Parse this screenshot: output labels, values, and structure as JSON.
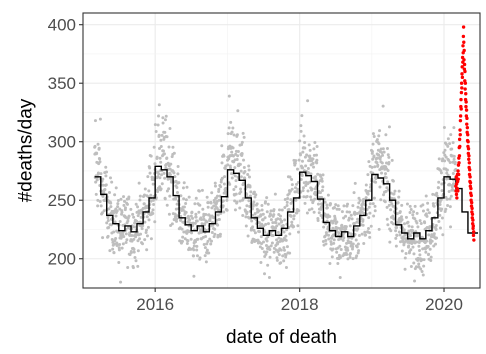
{
  "chart_data": {
    "type": "scatter",
    "xlabel": "date of death",
    "ylabel": "#deaths/day",
    "xlim": [
      "2015-01-01",
      "2020-07-01"
    ],
    "ylim": [
      175,
      410
    ],
    "x_ticks": [
      {
        "date": "2016-01-01",
        "label": "2016"
      },
      {
        "date": "2018-01-01",
        "label": "2018"
      },
      {
        "date": "2020-01-01",
        "label": "2020"
      }
    ],
    "y_ticks": [
      {
        "value": 200,
        "label": "200"
      },
      {
        "value": 250,
        "label": "250"
      },
      {
        "value": 300,
        "label": "300"
      },
      {
        "value": 350,
        "label": "350"
      },
      {
        "value": 400,
        "label": "400"
      }
    ],
    "grid": true,
    "colors": {
      "observed": "#bebebe",
      "highlight": "#ff0000",
      "baseline": "#000000"
    },
    "highlight_period": {
      "start": "2020-03-01",
      "end": "2020-05-31"
    },
    "baseline_series": {
      "style": "step",
      "values": [
        {
          "start": "2015-03-01",
          "value": 270
        },
        {
          "start": "2015-04-01",
          "value": 255
        },
        {
          "start": "2015-05-01",
          "value": 237
        },
        {
          "start": "2015-06-01",
          "value": 230
        },
        {
          "start": "2015-07-01",
          "value": 224
        },
        {
          "start": "2015-08-01",
          "value": 228
        },
        {
          "start": "2015-09-01",
          "value": 223
        },
        {
          "start": "2015-10-01",
          "value": 230
        },
        {
          "start": "2015-11-01",
          "value": 240
        },
        {
          "start": "2015-12-01",
          "value": 252
        },
        {
          "start": "2016-01-01",
          "value": 279
        },
        {
          "start": "2016-02-01",
          "value": 276
        },
        {
          "start": "2016-03-01",
          "value": 270
        },
        {
          "start": "2016-04-01",
          "value": 254
        },
        {
          "start": "2016-05-01",
          "value": 235
        },
        {
          "start": "2016-06-01",
          "value": 229
        },
        {
          "start": "2016-07-01",
          "value": 224
        },
        {
          "start": "2016-08-01",
          "value": 228
        },
        {
          "start": "2016-09-01",
          "value": 223
        },
        {
          "start": "2016-10-01",
          "value": 230
        },
        {
          "start": "2016-11-01",
          "value": 240
        },
        {
          "start": "2016-12-01",
          "value": 253
        },
        {
          "start": "2017-01-01",
          "value": 276
        },
        {
          "start": "2017-02-01",
          "value": 273
        },
        {
          "start": "2017-03-01",
          "value": 267
        },
        {
          "start": "2017-04-01",
          "value": 252
        },
        {
          "start": "2017-05-01",
          "value": 235
        },
        {
          "start": "2017-06-01",
          "value": 226
        },
        {
          "start": "2017-07-01",
          "value": 220
        },
        {
          "start": "2017-08-01",
          "value": 224
        },
        {
          "start": "2017-09-01",
          "value": 220
        },
        {
          "start": "2017-10-01",
          "value": 226
        },
        {
          "start": "2017-11-01",
          "value": 240
        },
        {
          "start": "2017-12-01",
          "value": 252
        },
        {
          "start": "2018-01-01",
          "value": 274
        },
        {
          "start": "2018-02-01",
          "value": 271
        },
        {
          "start": "2018-03-01",
          "value": 266
        },
        {
          "start": "2018-04-01",
          "value": 251
        },
        {
          "start": "2018-05-01",
          "value": 231
        },
        {
          "start": "2018-06-01",
          "value": 224
        },
        {
          "start": "2018-07-01",
          "value": 219
        },
        {
          "start": "2018-08-01",
          "value": 223
        },
        {
          "start": "2018-09-01",
          "value": 219
        },
        {
          "start": "2018-10-01",
          "value": 228
        },
        {
          "start": "2018-11-01",
          "value": 237
        },
        {
          "start": "2018-12-01",
          "value": 250
        },
        {
          "start": "2019-01-01",
          "value": 272
        },
        {
          "start": "2019-02-01",
          "value": 269
        },
        {
          "start": "2019-03-01",
          "value": 264
        },
        {
          "start": "2019-04-01",
          "value": 250
        },
        {
          "start": "2019-05-01",
          "value": 229
        },
        {
          "start": "2019-06-01",
          "value": 222
        },
        {
          "start": "2019-07-01",
          "value": 217
        },
        {
          "start": "2019-08-01",
          "value": 222
        },
        {
          "start": "2019-09-01",
          "value": 217
        },
        {
          "start": "2019-10-01",
          "value": 224
        },
        {
          "start": "2019-11-01",
          "value": 235
        },
        {
          "start": "2019-12-01",
          "value": 252
        },
        {
          "start": "2020-01-01",
          "value": 270
        },
        {
          "start": "2020-02-01",
          "value": 268
        },
        {
          "start": "2020-03-01",
          "value": 260
        },
        {
          "start": "2020-04-01",
          "value": 240
        },
        {
          "start": "2020-05-01",
          "value": 222
        },
        {
          "start": "2020-06-01",
          "value": 222
        }
      ]
    },
    "scatter_model": {
      "start": "2015-03-01",
      "end": "2020-02-29",
      "spread": 14,
      "winter_spikes": [
        {
          "date": "2015-03-05",
          "value": 318
        },
        {
          "date": "2016-02-10",
          "value": 316
        },
        {
          "date": "2017-01-10",
          "value": 339
        },
        {
          "date": "2018-02-10",
          "value": 335
        },
        {
          "date": "2019-02-05",
          "value": 305
        },
        {
          "date": "2020-01-20",
          "value": 296
        }
      ],
      "low_points": [
        {
          "date": "2015-07-10",
          "value": 180
        },
        {
          "date": "2016-07-15",
          "value": 185
        },
        {
          "date": "2017-08-01",
          "value": 184
        },
        {
          "date": "2018-07-25",
          "value": 184
        },
        {
          "date": "2019-08-05",
          "value": 181
        }
      ]
    },
    "highlight_points": [
      {
        "x": "2020-03-01",
        "y": 262
      },
      {
        "x": "2020-03-02",
        "y": 258
      },
      {
        "x": "2020-03-03",
        "y": 270
      },
      {
        "x": "2020-03-04",
        "y": 255
      },
      {
        "x": "2020-03-05",
        "y": 264
      },
      {
        "x": "2020-03-06",
        "y": 252
      },
      {
        "x": "2020-03-07",
        "y": 268
      },
      {
        "x": "2020-03-08",
        "y": 260
      },
      {
        "x": "2020-03-09",
        "y": 272
      },
      {
        "x": "2020-03-10",
        "y": 266
      },
      {
        "x": "2020-03-11",
        "y": 258
      },
      {
        "x": "2020-03-12",
        "y": 275
      },
      {
        "x": "2020-03-13",
        "y": 268
      },
      {
        "x": "2020-03-14",
        "y": 280
      },
      {
        "x": "2020-03-15",
        "y": 272
      },
      {
        "x": "2020-03-16",
        "y": 286
      },
      {
        "x": "2020-03-17",
        "y": 282
      },
      {
        "x": "2020-03-18",
        "y": 295
      },
      {
        "x": "2020-03-19",
        "y": 288
      },
      {
        "x": "2020-03-20",
        "y": 302
      },
      {
        "x": "2020-03-21",
        "y": 296
      },
      {
        "x": "2020-03-22",
        "y": 310
      },
      {
        "x": "2020-03-23",
        "y": 306
      },
      {
        "x": "2020-03-24",
        "y": 318
      },
      {
        "x": "2020-03-25",
        "y": 322
      },
      {
        "x": "2020-03-26",
        "y": 330
      },
      {
        "x": "2020-03-27",
        "y": 336
      },
      {
        "x": "2020-03-28",
        "y": 328
      },
      {
        "x": "2020-03-29",
        "y": 342
      },
      {
        "x": "2020-03-30",
        "y": 350
      },
      {
        "x": "2020-03-31",
        "y": 346
      },
      {
        "x": "2020-04-01",
        "y": 358
      },
      {
        "x": "2020-04-02",
        "y": 364
      },
      {
        "x": "2020-04-03",
        "y": 355
      },
      {
        "x": "2020-04-04",
        "y": 372
      },
      {
        "x": "2020-04-05",
        "y": 368
      },
      {
        "x": "2020-04-06",
        "y": 382
      },
      {
        "x": "2020-04-07",
        "y": 376
      },
      {
        "x": "2020-04-08",
        "y": 390
      },
      {
        "x": "2020-04-09",
        "y": 398
      },
      {
        "x": "2020-04-10",
        "y": 385
      },
      {
        "x": "2020-04-11",
        "y": 370
      },
      {
        "x": "2020-04-12",
        "y": 378
      },
      {
        "x": "2020-04-13",
        "y": 362
      },
      {
        "x": "2020-04-14",
        "y": 366
      },
      {
        "x": "2020-04-15",
        "y": 352
      },
      {
        "x": "2020-04-16",
        "y": 360
      },
      {
        "x": "2020-04-17",
        "y": 345
      },
      {
        "x": "2020-04-18",
        "y": 350
      },
      {
        "x": "2020-04-19",
        "y": 336
      },
      {
        "x": "2020-04-20",
        "y": 341
      },
      {
        "x": "2020-04-21",
        "y": 330
      },
      {
        "x": "2020-04-22",
        "y": 334
      },
      {
        "x": "2020-04-23",
        "y": 322
      },
      {
        "x": "2020-04-24",
        "y": 327
      },
      {
        "x": "2020-04-25",
        "y": 315
      },
      {
        "x": "2020-04-26",
        "y": 320
      },
      {
        "x": "2020-04-27",
        "y": 308
      },
      {
        "x": "2020-04-28",
        "y": 312
      },
      {
        "x": "2020-04-29",
        "y": 301
      },
      {
        "x": "2020-04-30",
        "y": 306
      },
      {
        "x": "2020-05-01",
        "y": 296
      },
      {
        "x": "2020-05-02",
        "y": 300
      },
      {
        "x": "2020-05-03",
        "y": 290
      },
      {
        "x": "2020-05-04",
        "y": 294
      },
      {
        "x": "2020-05-05",
        "y": 285
      },
      {
        "x": "2020-05-06",
        "y": 288
      },
      {
        "x": "2020-05-07",
        "y": 278
      },
      {
        "x": "2020-05-08",
        "y": 282
      },
      {
        "x": "2020-05-09",
        "y": 272
      },
      {
        "x": "2020-05-10",
        "y": 276
      },
      {
        "x": "2020-05-11",
        "y": 266
      },
      {
        "x": "2020-05-12",
        "y": 270
      },
      {
        "x": "2020-05-13",
        "y": 262
      },
      {
        "x": "2020-05-14",
        "y": 265
      },
      {
        "x": "2020-05-15",
        "y": 256
      },
      {
        "x": "2020-05-16",
        "y": 260
      },
      {
        "x": "2020-05-17",
        "y": 250
      },
      {
        "x": "2020-05-18",
        "y": 254
      },
      {
        "x": "2020-05-19",
        "y": 245
      },
      {
        "x": "2020-05-20",
        "y": 248
      },
      {
        "x": "2020-05-21",
        "y": 240
      },
      {
        "x": "2020-05-22",
        "y": 243
      },
      {
        "x": "2020-05-23",
        "y": 235
      },
      {
        "x": "2020-05-24",
        "y": 238
      },
      {
        "x": "2020-05-25",
        "y": 230
      },
      {
        "x": "2020-05-26",
        "y": 233
      },
      {
        "x": "2020-05-27",
        "y": 226
      },
      {
        "x": "2020-05-28",
        "y": 228
      },
      {
        "x": "2020-05-29",
        "y": 220
      },
      {
        "x": "2020-05-30",
        "y": 223
      },
      {
        "x": "2020-05-31",
        "y": 216
      }
    ]
  }
}
